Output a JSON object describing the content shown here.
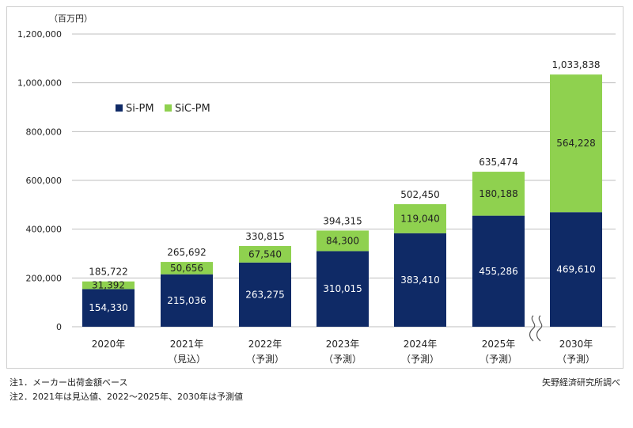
{
  "chart_data": {
    "type": "bar",
    "stacked": true,
    "unit_label": "（百万円）",
    "categories": [
      "2020年",
      "2021年",
      "2022年",
      "2023年",
      "2024年",
      "2025年",
      "2030年"
    ],
    "category_sublabels": [
      "",
      "（見込）",
      "（予測）",
      "（予測）",
      "（予測）",
      "（予測）",
      "（予測）"
    ],
    "series": [
      {
        "name": "Si-PM",
        "color": "#0f2a66",
        "values": [
          154330,
          215036,
          263275,
          310015,
          383410,
          455286,
          469610
        ],
        "labels": [
          "154,330",
          "215,036",
          "263,275",
          "310,015",
          "383,410",
          "455,286",
          "469,610"
        ]
      },
      {
        "name": "SiC-PM",
        "color": "#8fd14f",
        "values": [
          31392,
          50656,
          67540,
          84300,
          119040,
          180188,
          564228
        ],
        "labels": [
          "31,392",
          "50,656",
          "67,540",
          "84,300",
          "119,040",
          "180,188",
          "564,228"
        ]
      }
    ],
    "totals": [
      185722,
      265692,
      330815,
      394315,
      502450,
      635474,
      1033838
    ],
    "total_labels": [
      "185,722",
      "265,692",
      "330,815",
      "394,315",
      "502,450",
      "635,474",
      "1,033,838"
    ],
    "ylim": [
      0,
      1200000
    ],
    "yticks": [
      0,
      200000,
      400000,
      600000,
      800000,
      1000000,
      1200000
    ],
    "ytick_labels": [
      "0",
      "200,000",
      "400,000",
      "600,000",
      "800,000",
      "1,000,000",
      "1,200,000"
    ],
    "grid": true,
    "legend_position": "top-left",
    "axis_break_before_last": true
  },
  "notes": {
    "note1": "注1．メーカー出荷金額ベース",
    "note2": "注2．2021年は見込値、2022～2025年、2030年は予測値",
    "source": "矢野経済研究所調べ"
  }
}
